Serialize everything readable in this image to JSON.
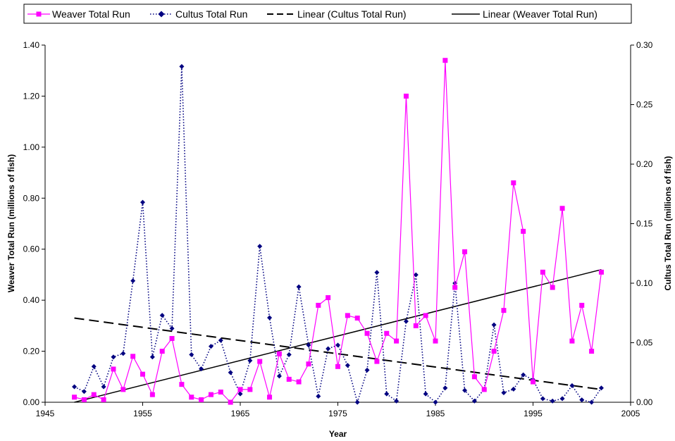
{
  "chart_data": {
    "type": "line",
    "xlabel": "Year",
    "y1label": "Weaver Total Run (millions of fish)",
    "y2label": "Cultus Total Run (millions of fish)",
    "xlim": [
      1945,
      2005
    ],
    "y1lim": [
      0,
      1.4
    ],
    "y2lim": [
      0,
      0.3
    ],
    "x_ticks": [
      "1945",
      "1955",
      "1965",
      "1975",
      "1985",
      "1995",
      "2005"
    ],
    "y1_ticks": [
      "0.00",
      "0.20",
      "0.40",
      "0.60",
      "0.80",
      "1.00",
      "1.20",
      "1.40"
    ],
    "y2_ticks": [
      "0.00",
      "0.05",
      "0.10",
      "0.15",
      "0.20",
      "0.25",
      "0.30"
    ],
    "legend": {
      "position": "top",
      "entries": [
        "Weaver Total Run",
        "Cultus Total Run",
        "Linear (Cultus Total Run)",
        "Linear (Weaver Total Run)"
      ]
    },
    "colors": {
      "weaver": "#ff00ff",
      "cultus": "#000080",
      "trend": "#000000"
    },
    "series": [
      {
        "name": "Weaver Total Run",
        "axis": "left",
        "x": [
          1948,
          1949,
          1950,
          1951,
          1952,
          1953,
          1954,
          1955,
          1956,
          1957,
          1958,
          1959,
          1960,
          1961,
          1962,
          1963,
          1964,
          1965,
          1966,
          1967,
          1968,
          1969,
          1970,
          1971,
          1972,
          1973,
          1974,
          1975,
          1976,
          1977,
          1978,
          1979,
          1980,
          1981,
          1982,
          1983,
          1984,
          1985,
          1986,
          1987,
          1988,
          1989,
          1990,
          1991,
          1992,
          1993,
          1994,
          1995,
          1996,
          1997,
          1998,
          1999,
          2000,
          2001,
          2002
        ],
        "y": [
          0.02,
          0.01,
          0.03,
          0.01,
          0.13,
          0.05,
          0.18,
          0.11,
          0.03,
          0.2,
          0.25,
          0.07,
          0.02,
          0.01,
          0.03,
          0.04,
          0.0,
          0.05,
          0.05,
          0.16,
          0.02,
          0.19,
          0.09,
          0.08,
          0.15,
          0.38,
          0.41,
          0.14,
          0.34,
          0.33,
          0.27,
          0.16,
          0.27,
          0.24,
          1.2,
          0.3,
          0.34,
          0.24,
          1.34,
          0.45,
          0.59,
          0.1,
          0.05,
          0.2,
          0.36,
          0.86,
          0.67,
          0.08,
          0.51,
          0.45,
          0.76,
          0.24,
          0.38,
          0.2,
          0.51
        ]
      },
      {
        "name": "Cultus Total Run",
        "axis": "right",
        "x": [
          1948,
          1949,
          1950,
          1951,
          1952,
          1953,
          1954,
          1955,
          1956,
          1957,
          1958,
          1959,
          1960,
          1961,
          1962,
          1963,
          1964,
          1965,
          1966,
          1967,
          1968,
          1969,
          1970,
          1971,
          1972,
          1973,
          1974,
          1975,
          1976,
          1977,
          1978,
          1979,
          1980,
          1981,
          1982,
          1983,
          1984,
          1985,
          1986,
          1987,
          1988,
          1989,
          1990,
          1991,
          1992,
          1993,
          1994,
          1995,
          1996,
          1997,
          1998,
          1999,
          2000,
          2001,
          2002
        ],
        "y": [
          0.013,
          0.009,
          0.03,
          0.013,
          0.038,
          0.041,
          0.102,
          0.168,
          0.038,
          0.073,
          0.062,
          0.282,
          0.04,
          0.028,
          0.047,
          0.052,
          0.025,
          0.007,
          0.035,
          0.131,
          0.071,
          0.022,
          0.04,
          0.097,
          0.048,
          0.005,
          0.045,
          0.048,
          0.031,
          0.0,
          0.027,
          0.109,
          0.007,
          0.001,
          0.068,
          0.107,
          0.007,
          0.0,
          0.012,
          0.1,
          0.01,
          0.001,
          0.011,
          0.065,
          0.008,
          0.011,
          0.023,
          0.019,
          0.003,
          0.001,
          0.003,
          0.014,
          0.002,
          0.0,
          0.012
        ]
      },
      {
        "name": "Linear (Cultus Total Run)",
        "axis": "left",
        "style": "dashed",
        "x": [
          1948,
          2002
        ],
        "y": [
          0.33,
          0.05
        ]
      },
      {
        "name": "Linear (Weaver Total Run)",
        "axis": "left",
        "style": "solid",
        "x": [
          1948,
          2002
        ],
        "y": [
          0.0,
          0.52
        ]
      }
    ]
  }
}
